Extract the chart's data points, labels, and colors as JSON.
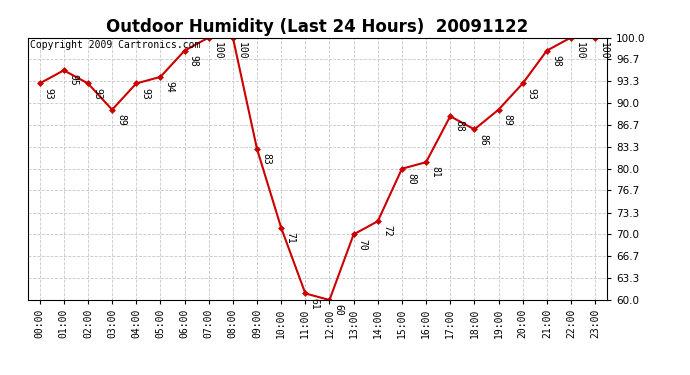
{
  "title": "Outdoor Humidity (Last 24 Hours)  20091122",
  "copyright_text": "Copyright 2009 Cartronics.com",
  "hours": [
    "00:00",
    "01:00",
    "02:00",
    "03:00",
    "04:00",
    "05:00",
    "06:00",
    "07:00",
    "08:00",
    "09:00",
    "10:00",
    "11:00",
    "12:00",
    "13:00",
    "14:00",
    "15:00",
    "16:00",
    "17:00",
    "18:00",
    "19:00",
    "20:00",
    "21:00",
    "22:00",
    "23:00"
  ],
  "values": [
    93,
    95,
    93,
    89,
    93,
    94,
    98,
    100,
    100,
    83,
    71,
    61,
    60,
    70,
    72,
    80,
    81,
    88,
    86,
    89,
    93,
    98,
    100,
    100
  ],
  "ylim": [
    60.0,
    100.0
  ],
  "yticks": [
    60.0,
    63.3,
    66.7,
    70.0,
    73.3,
    76.7,
    80.0,
    83.3,
    86.7,
    90.0,
    93.3,
    96.7,
    100.0
  ],
  "ytick_labels": [
    "60.0",
    "63.3",
    "66.7",
    "70.0",
    "73.3",
    "76.7",
    "80.0",
    "83.3",
    "86.7",
    "90.0",
    "93.3",
    "96.7",
    "100.0"
  ],
  "line_color": "#CC0000",
  "marker_color": "#CC0000",
  "bg_color": "#ffffff",
  "grid_color": "#c8c8c8",
  "title_fontsize": 12,
  "label_fontsize": 7,
  "annotation_fontsize": 7,
  "copyright_fontsize": 7
}
